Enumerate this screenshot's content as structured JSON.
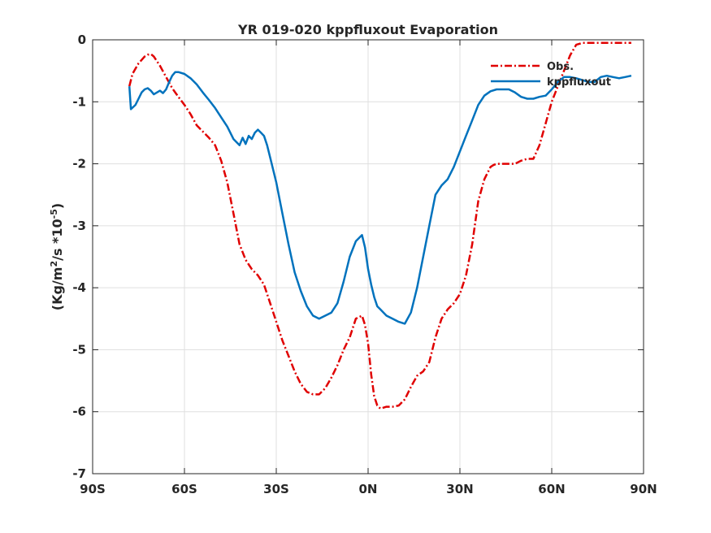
{
  "chart_data": {
    "type": "line",
    "title": "YR 019-020 kppfluxout Evaporation",
    "xlabel": "",
    "ylabel": {
      "prefix": "(Kg/m",
      "sup1": "2",
      "mid": "/s *10",
      "sup2": "-5",
      "suffix": ")"
    },
    "xlim": [
      -90,
      90
    ],
    "ylim": [
      -7,
      0
    ],
    "x_ticks": [
      -90,
      -60,
      -30,
      0,
      30,
      60,
      90
    ],
    "x_tick_labels": [
      "90S",
      "60S",
      "30S",
      "0N",
      "30N",
      "60N",
      "90N"
    ],
    "y_ticks": [
      0,
      -1,
      -2,
      -3,
      -4,
      -5,
      -6,
      -7
    ],
    "y_tick_labels": [
      "0",
      "-1",
      "-2",
      "-3",
      "-4",
      "-5",
      "-6",
      "-7"
    ],
    "grid": true,
    "legend_position": "top-right",
    "series": [
      {
        "name": "Obs.",
        "color": "#e00000",
        "style": "dash-dot",
        "x": [
          -78,
          -77,
          -75,
          -73,
          -72,
          -71,
          -70,
          -68,
          -66,
          -64,
          -62,
          -60,
          -58,
          -56,
          -54,
          -52,
          -50,
          -48,
          -46,
          -44,
          -42,
          -40,
          -38,
          -36,
          -34,
          -32,
          -30,
          -28,
          -26,
          -24,
          -22,
          -20,
          -18,
          -16,
          -14,
          -12,
          -10,
          -8,
          -6,
          -4,
          -2,
          -1,
          0,
          1,
          2,
          3,
          4,
          6,
          8,
          10,
          12,
          14,
          16,
          18,
          20,
          22,
          24,
          26,
          28,
          30,
          32,
          34,
          36,
          38,
          40,
          41,
          42,
          44,
          46,
          48,
          50,
          52,
          54,
          56,
          58,
          60,
          62,
          64,
          66,
          68,
          70,
          72,
          74,
          76,
          78,
          80,
          82,
          84,
          86
        ],
        "y": [
          -0.75,
          -0.55,
          -0.38,
          -0.27,
          -0.24,
          -0.23,
          -0.27,
          -0.42,
          -0.6,
          -0.78,
          -0.92,
          -1.05,
          -1.2,
          -1.38,
          -1.48,
          -1.58,
          -1.7,
          -1.95,
          -2.3,
          -2.8,
          -3.3,
          -3.55,
          -3.7,
          -3.8,
          -3.95,
          -4.25,
          -4.55,
          -4.85,
          -5.1,
          -5.35,
          -5.55,
          -5.68,
          -5.72,
          -5.72,
          -5.62,
          -5.45,
          -5.25,
          -5.0,
          -4.8,
          -4.5,
          -4.45,
          -4.6,
          -4.9,
          -5.4,
          -5.75,
          -5.9,
          -5.95,
          -5.92,
          -5.92,
          -5.9,
          -5.8,
          -5.6,
          -5.42,
          -5.35,
          -5.2,
          -4.8,
          -4.5,
          -4.35,
          -4.25,
          -4.1,
          -3.8,
          -3.3,
          -2.6,
          -2.25,
          -2.05,
          -2.02,
          -2.0,
          -2.0,
          -2.0,
          -2.0,
          -1.95,
          -1.92,
          -1.92,
          -1.7,
          -1.35,
          -1.0,
          -0.75,
          -0.5,
          -0.25,
          -0.08,
          -0.05,
          -0.05,
          -0.05,
          -0.05,
          -0.05,
          -0.05,
          -0.05,
          -0.05,
          -0.05
        ]
      },
      {
        "name": "kppfluxout",
        "color": "#0072bd",
        "style": "solid",
        "x": [
          -78,
          -77.5,
          -76,
          -75,
          -74,
          -73,
          -72,
          -71,
          -70,
          -69,
          -68,
          -67,
          -66,
          -65,
          -64,
          -63,
          -62,
          -60,
          -58,
          -56,
          -54,
          -52,
          -50,
          -48,
          -46,
          -44,
          -42,
          -41,
          -40,
          -39,
          -38,
          -37,
          -36,
          -35,
          -34,
          -33,
          -32,
          -30,
          -28,
          -26,
          -24,
          -22,
          -20,
          -18,
          -16,
          -14,
          -12,
          -10,
          -8,
          -6,
          -4,
          -2,
          -1,
          0,
          1,
          2,
          3,
          4,
          6,
          8,
          10,
          12,
          14,
          16,
          18,
          20,
          22,
          24,
          26,
          28,
          30,
          32,
          34,
          36,
          38,
          40,
          42,
          44,
          46,
          48,
          50,
          52,
          54,
          56,
          58,
          60,
          62,
          64,
          66,
          68,
          70,
          72,
          74,
          76,
          78,
          80,
          82,
          84,
          86
        ],
        "y": [
          -0.75,
          -1.12,
          -1.05,
          -0.95,
          -0.85,
          -0.8,
          -0.78,
          -0.82,
          -0.88,
          -0.85,
          -0.82,
          -0.86,
          -0.8,
          -0.68,
          -0.58,
          -0.52,
          -0.52,
          -0.55,
          -0.62,
          -0.72,
          -0.85,
          -0.97,
          -1.1,
          -1.25,
          -1.4,
          -1.6,
          -1.7,
          -1.58,
          -1.68,
          -1.55,
          -1.6,
          -1.5,
          -1.45,
          -1.5,
          -1.55,
          -1.7,
          -1.9,
          -2.3,
          -2.8,
          -3.3,
          -3.75,
          -4.05,
          -4.3,
          -4.45,
          -4.5,
          -4.45,
          -4.4,
          -4.25,
          -3.9,
          -3.5,
          -3.25,
          -3.15,
          -3.35,
          -3.7,
          -3.95,
          -4.15,
          -4.3,
          -4.35,
          -4.45,
          -4.5,
          -4.55,
          -4.58,
          -4.4,
          -4.0,
          -3.5,
          -3.0,
          -2.5,
          -2.35,
          -2.25,
          -2.05,
          -1.8,
          -1.55,
          -1.3,
          -1.05,
          -0.9,
          -0.83,
          -0.8,
          -0.8,
          -0.8,
          -0.85,
          -0.92,
          -0.95,
          -0.95,
          -0.92,
          -0.9,
          -0.8,
          -0.68,
          -0.6,
          -0.6,
          -0.62,
          -0.65,
          -0.68,
          -0.68,
          -0.6,
          -0.58,
          -0.6,
          -0.62,
          -0.6,
          -0.58
        ]
      }
    ]
  }
}
